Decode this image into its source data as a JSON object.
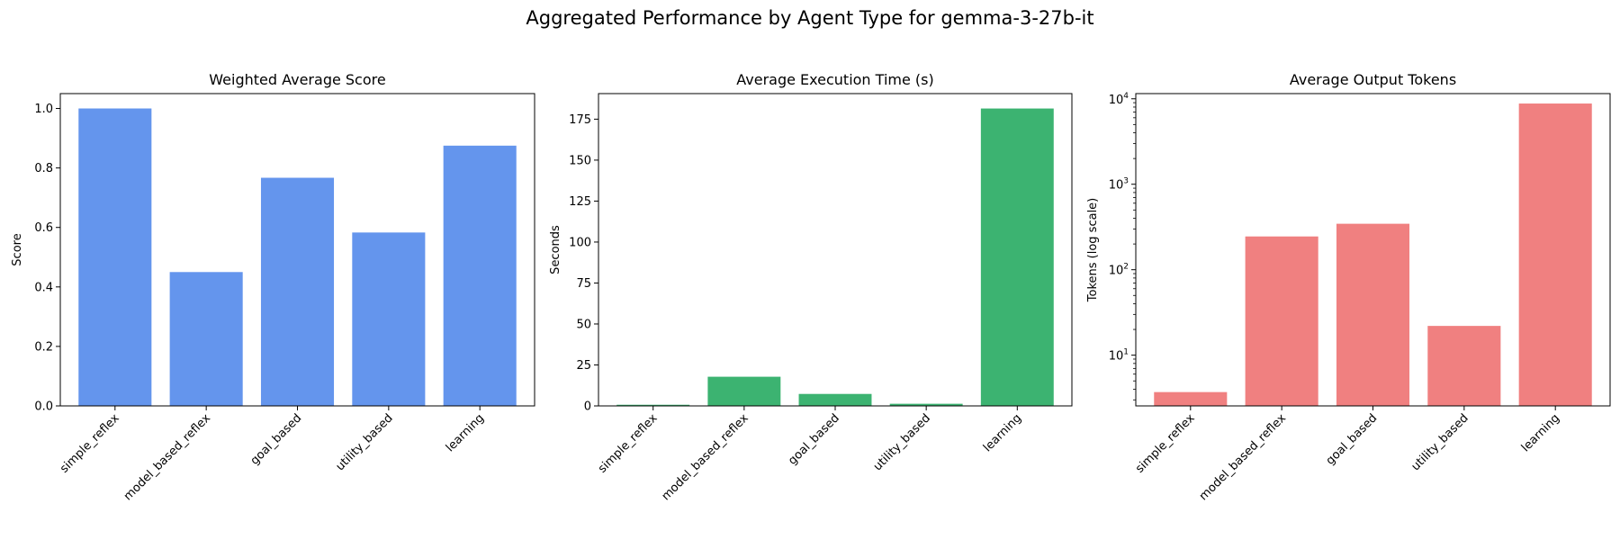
{
  "figure_title": "Aggregated Performance by Agent Type for gemma-3-27b-it",
  "chart_data": [
    {
      "type": "bar",
      "title": "Weighted Average Score",
      "xlabel": "",
      "ylabel": "Score",
      "categories": [
        "simple_reflex",
        "model_based_reflex",
        "goal_based",
        "utility_based",
        "learning"
      ],
      "values": [
        1.0,
        0.45,
        0.767,
        0.583,
        0.875
      ],
      "ylim": [
        0,
        1.05
      ],
      "yticks": [
        0.0,
        0.2,
        0.4,
        0.6,
        0.8,
        1.0
      ],
      "ytick_labels": [
        "0.0",
        "0.2",
        "0.4",
        "0.6",
        "0.8",
        "1.0"
      ],
      "scale": "linear",
      "color": "#6495ED",
      "grid": false
    },
    {
      "type": "bar",
      "title": "Average Execution Time (s)",
      "xlabel": "",
      "ylabel": "Seconds",
      "categories": [
        "simple_reflex",
        "model_based_reflex",
        "goal_based",
        "utility_based",
        "learning"
      ],
      "values": [
        0.7,
        17.8,
        7.3,
        1.3,
        181.5
      ],
      "ylim": [
        0,
        190.6
      ],
      "yticks": [
        0,
        25,
        50,
        75,
        100,
        125,
        150,
        175
      ],
      "ytick_labels": [
        "0",
        "25",
        "50",
        "75",
        "100",
        "125",
        "150",
        "175"
      ],
      "scale": "linear",
      "color": "#3CB371",
      "grid": false
    },
    {
      "type": "bar",
      "title": "Average Output Tokens",
      "xlabel": "",
      "ylabel": "Tokens (log scale)",
      "categories": [
        "simple_reflex",
        "model_based_reflex",
        "goal_based",
        "utility_based",
        "learning"
      ],
      "values": [
        3.7,
        245,
        345,
        22,
        8800
      ],
      "ylim": [
        2.55,
        11500
      ],
      "yticks": [
        10,
        100,
        1000,
        10000
      ],
      "ytick_labels": [
        [
          "10",
          "1"
        ],
        [
          "10",
          "2"
        ],
        [
          "10",
          "3"
        ],
        [
          "10",
          "4"
        ]
      ],
      "scale": "log",
      "color": "#F08080",
      "grid": false
    }
  ]
}
